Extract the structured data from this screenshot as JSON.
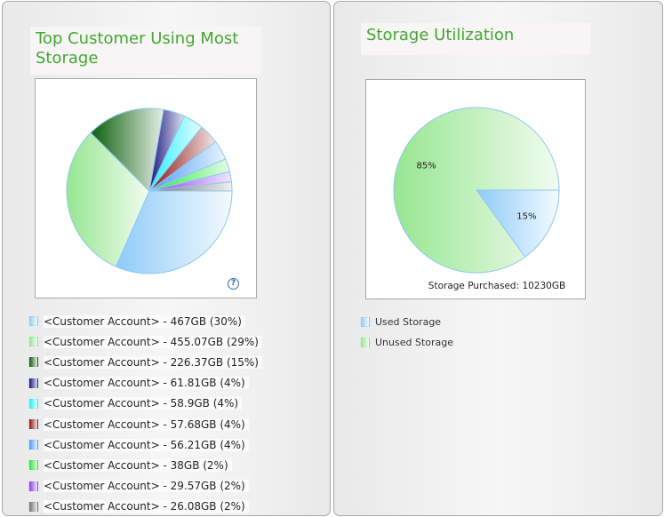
{
  "left_panel": {
    "title": "Top Customer Using Most Storage",
    "help_icon": "?",
    "legend": [
      {
        "account": "<Customer Account>",
        "detail": " - 467GB (30%)",
        "color_from": "#8ecbf8",
        "color_to": "#f4faff"
      },
      {
        "account": "<Customer Account>",
        "detail": " - 455.07GB (29%)",
        "color_from": "#96e690",
        "color_to": "#f2fcf0"
      },
      {
        "account": "<Customer Account>",
        "detail": " - 226.37GB (15%)",
        "color_from": "#0b5e0b",
        "color_to": "#e6eee6"
      },
      {
        "account": "<Customer Account>",
        "detail": " - 61.81GB (4%)",
        "color_from": "#17187f",
        "color_to": "#dfe0ef"
      },
      {
        "account": "<Customer Account>",
        "detail": " - 58.9GB (4%)",
        "color_from": "#22f0ff",
        "color_to": "#e6fdff"
      },
      {
        "account": "<Customer Account>",
        "detail": " - 57.68GB (4%)",
        "color_from": "#8b1515",
        "color_to": "#f3e4e4"
      },
      {
        "account": "<Customer Account>",
        "detail": " - 56.21GB (4%)",
        "color_from": "#4b9bf5",
        "color_to": "#eaf3ff"
      },
      {
        "account": "<Customer Account>",
        "detail": " - 38GB (2%)",
        "color_from": "#25e83a",
        "color_to": "#e6fce8"
      },
      {
        "account": "<Customer Account>",
        "detail": " - 29.57GB (2%)",
        "color_from": "#8a3de9",
        "color_to": "#f1e7fd"
      },
      {
        "account": "<Customer Account>",
        "detail": " - 26.08GB (2%)",
        "color_from": "#707070",
        "color_to": "#efefef"
      }
    ]
  },
  "right_panel": {
    "title": "Storage Utilization",
    "footer": "Storage Purchased: 10230GB",
    "legend": [
      {
        "label": "Used Storage",
        "color_from": "#8ecbf8",
        "color_to": "#f4faff"
      },
      {
        "label": "Unused Storage",
        "color_from": "#96e690",
        "color_to": "#f2fcf0"
      }
    ]
  },
  "chart_data": [
    {
      "type": "pie",
      "title": "Top Customer Using Most Storage",
      "categories": [
        "<Customer Account>",
        "<Customer Account>",
        "<Customer Account>",
        "<Customer Account>",
        "<Customer Account>",
        "<Customer Account>",
        "<Customer Account>",
        "<Customer Account>",
        "<Customer Account>",
        "<Customer Account>"
      ],
      "values_gb": [
        467,
        455.07,
        226.37,
        61.81,
        58.9,
        57.68,
        56.21,
        38,
        29.57,
        26.08
      ],
      "percent_labels": [
        "30%",
        "29%",
        "15%",
        "4%",
        "4%",
        "4%",
        "4%",
        "2%",
        "2%",
        "2%"
      ],
      "legend_position": "bottom"
    },
    {
      "type": "pie",
      "title": "Storage Utilization",
      "categories": [
        "Used Storage",
        "Unused Storage"
      ],
      "values": [
        15,
        85
      ],
      "data_labels": [
        "15%",
        "85%"
      ],
      "annotation": "Storage Purchased: 10230GB",
      "legend_position": "bottom"
    }
  ]
}
